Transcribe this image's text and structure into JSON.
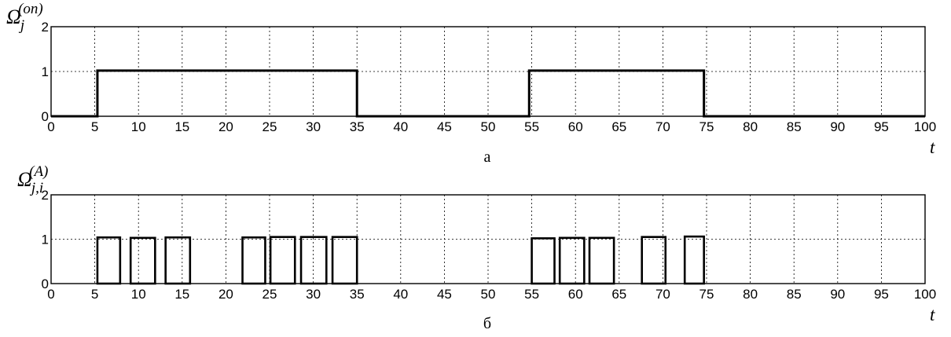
{
  "chart_data": [
    {
      "type": "line",
      "id": "a",
      "caption": "а",
      "ylabel_symbol": "Ω",
      "ylabel_sub": "j",
      "ylabel_sup": "(on)",
      "xlabel": "t",
      "xlim": [
        0,
        100
      ],
      "ylim": [
        0,
        2
      ],
      "xticks": [
        "0",
        "5",
        "10",
        "15",
        "20",
        "25",
        "30",
        "35",
        "40",
        "45",
        "50",
        "55",
        "60",
        "65",
        "70",
        "75",
        "80",
        "85",
        "90",
        "95",
        "100"
      ],
      "yticks": [
        "0",
        "1",
        "2"
      ],
      "grid": true,
      "series": [
        {
          "x": [
            0,
            5.3,
            5.3,
            35,
            35,
            54.7,
            54.7,
            74.7,
            74.7,
            100
          ],
          "y": [
            0,
            0,
            1.02,
            1.02,
            0,
            0,
            1.02,
            1.02,
            0,
            0
          ]
        }
      ]
    },
    {
      "type": "bar",
      "id": "b",
      "caption": "б",
      "ylabel_symbol": "Ω",
      "ylabel_sub": "j,i",
      "ylabel_sup": "(A)",
      "xlabel": "t",
      "xlim": [
        0,
        100
      ],
      "ylim": [
        0,
        2
      ],
      "xticks": [
        "0",
        "5",
        "10",
        "15",
        "20",
        "25",
        "30",
        "35",
        "40",
        "45",
        "50",
        "55",
        "60",
        "65",
        "70",
        "75",
        "80",
        "85",
        "90",
        "95",
        "100"
      ],
      "yticks": [
        "0",
        "1",
        "2"
      ],
      "grid": true,
      "pulses": [
        {
          "start": 5.3,
          "end": 7.9,
          "value": 1.04
        },
        {
          "start": 9.1,
          "end": 11.9,
          "value": 1.03
        },
        {
          "start": 13.1,
          "end": 15.9,
          "value": 1.04
        },
        {
          "start": 21.9,
          "end": 24.5,
          "value": 1.04
        },
        {
          "start": 25.1,
          "end": 27.9,
          "value": 1.05
        },
        {
          "start": 28.6,
          "end": 31.5,
          "value": 1.05
        },
        {
          "start": 32.2,
          "end": 35.0,
          "value": 1.05
        },
        {
          "start": 55.0,
          "end": 57.6,
          "value": 1.02
        },
        {
          "start": 58.2,
          "end": 61.0,
          "value": 1.03
        },
        {
          "start": 61.6,
          "end": 64.4,
          "value": 1.03
        },
        {
          "start": 67.6,
          "end": 70.3,
          "value": 1.05
        },
        {
          "start": 72.5,
          "end": 74.7,
          "value": 1.06
        }
      ]
    }
  ]
}
